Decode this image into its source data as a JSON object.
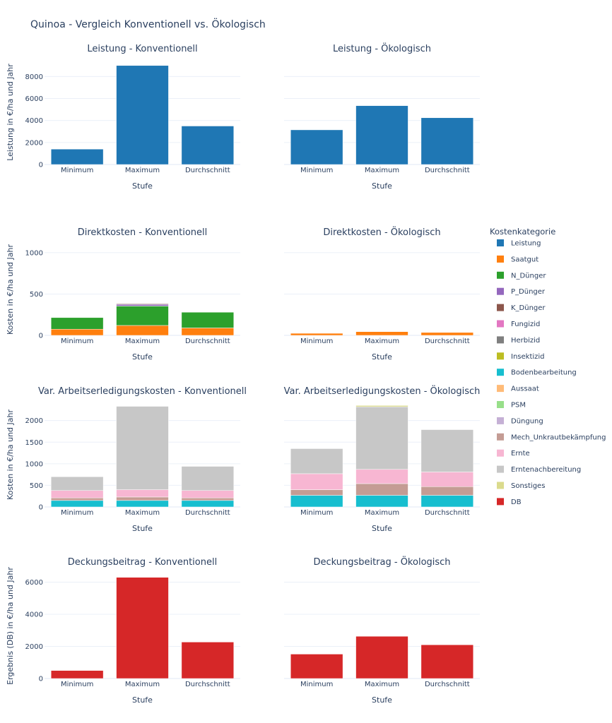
{
  "figure_title": "Quinoa - Vergleich Konventionell vs. Ökologisch",
  "legend": {
    "title": "Kostenkategorie",
    "items": [
      {
        "name": "Leistung",
        "color": "#1f77b4"
      },
      {
        "name": "Saatgut",
        "color": "#ff7f0e"
      },
      {
        "name": "N_Dünger",
        "color": "#2ca02c"
      },
      {
        "name": "P_Dünger",
        "color": "#9467bd"
      },
      {
        "name": "K_Dünger",
        "color": "#8c564b"
      },
      {
        "name": "Fungizid",
        "color": "#e377c2"
      },
      {
        "name": "Herbizid",
        "color": "#7f7f7f"
      },
      {
        "name": "Insektizid",
        "color": "#bcbd22"
      },
      {
        "name": "Bodenbearbeitung",
        "color": "#17becf"
      },
      {
        "name": "Aussaat",
        "color": "#ffbb78"
      },
      {
        "name": "PSM",
        "color": "#98df8a"
      },
      {
        "name": "Düngung",
        "color": "#c5b0d5"
      },
      {
        "name": "Mech_Unkrautbekämpfung",
        "color": "#c49c94"
      },
      {
        "name": "Ernte",
        "color": "#f7b6d2"
      },
      {
        "name": "Erntenachbereitung",
        "color": "#c7c7c7"
      },
      {
        "name": "Sonstiges",
        "color": "#dbdb8d"
      },
      {
        "name": "DB",
        "color": "#d62728"
      }
    ]
  },
  "chart_data": [
    {
      "type": "bar",
      "title": "Leistung - Konventionell",
      "xlabel": "Stufe",
      "ylabel": "Leistung in €/ha und Jahr",
      "categories": [
        "Minimum",
        "Maximum",
        "Durchschnitt"
      ],
      "ylim": [
        0,
        9500
      ],
      "yticks": [
        0,
        2000,
        4000,
        6000,
        8000
      ],
      "show_yticks": true,
      "series": [
        {
          "name": "Leistung",
          "values": [
            1400,
            9000,
            3500
          ]
        }
      ]
    },
    {
      "type": "bar",
      "title": "Leistung - Ökologisch",
      "xlabel": "Stufe",
      "ylabel": "",
      "categories": [
        "Minimum",
        "Maximum",
        "Durchschnitt"
      ],
      "ylim": [
        0,
        9500
      ],
      "yticks": [
        0,
        2000,
        4000,
        6000,
        8000
      ],
      "show_yticks": false,
      "series": [
        {
          "name": "Leistung",
          "values": [
            3150,
            5350,
            4250
          ]
        }
      ]
    },
    {
      "type": "bar",
      "stacked": true,
      "title": "Direktkosten - Konventionell",
      "xlabel": "Stufe",
      "ylabel": "Kosten in €/ha und Jahr",
      "categories": [
        "Minimum",
        "Maximum",
        "Durchschnitt"
      ],
      "ylim": [
        0,
        1110
      ],
      "yticks": [
        0,
        500,
        1000
      ],
      "show_yticks": true,
      "series": [
        {
          "name": "Saatgut",
          "values": [
            75,
            120,
            90
          ]
        },
        {
          "name": "N_Dünger",
          "values": [
            140,
            235,
            190
          ]
        },
        {
          "name": "P_Dünger",
          "values": [
            0,
            20,
            0
          ]
        },
        {
          "name": "K_Dünger",
          "values": [
            0,
            8,
            0
          ]
        }
      ]
    },
    {
      "type": "bar",
      "stacked": true,
      "title": "Direktkosten - Ökologisch",
      "xlabel": "Stufe",
      "ylabel": "",
      "categories": [
        "Minimum",
        "Maximum",
        "Durchschnitt"
      ],
      "ylim": [
        0,
        1110
      ],
      "yticks": [
        0,
        500,
        1000
      ],
      "show_yticks": false,
      "series": [
        {
          "name": "Saatgut",
          "values": [
            25,
            45,
            35
          ]
        }
      ]
    },
    {
      "type": "bar",
      "stacked": true,
      "title": "Var. Arbeitserledigungskosten - Konventionell",
      "xlabel": "Stufe",
      "ylabel": "Kosten in €/ha und Jahr",
      "categories": [
        "Minimum",
        "Maximum",
        "Durchschnitt"
      ],
      "ylim": [
        0,
        2420
      ],
      "yticks": [
        0,
        500,
        1000,
        1500,
        2000
      ],
      "show_yticks": true,
      "series": [
        {
          "name": "Bodenbearbeitung",
          "values": [
            150,
            150,
            150
          ]
        },
        {
          "name": "Mech_Unkrautbekämpfung",
          "values": [
            60,
            80,
            60
          ]
        },
        {
          "name": "Ernte",
          "values": [
            170,
            170,
            170
          ]
        },
        {
          "name": "Erntenachbereitung",
          "values": [
            320,
            1930,
            560
          ]
        }
      ]
    },
    {
      "type": "bar",
      "stacked": true,
      "title": "Var. Arbeitserledigungskosten - Ökologisch",
      "xlabel": "Stufe",
      "ylabel": "",
      "categories": [
        "Minimum",
        "Maximum",
        "Durchschnitt"
      ],
      "ylim": [
        0,
        2420
      ],
      "yticks": [
        0,
        500,
        1000,
        1500,
        2000
      ],
      "show_yticks": false,
      "series": [
        {
          "name": "Bodenbearbeitung",
          "values": [
            270,
            270,
            270
          ]
        },
        {
          "name": "Mech_Unkrautbekämpfung",
          "values": [
            130,
            270,
            200
          ]
        },
        {
          "name": "Ernte",
          "values": [
            370,
            330,
            340
          ]
        },
        {
          "name": "Erntenachbereitung",
          "values": [
            580,
            1450,
            980
          ]
        },
        {
          "name": "Sonstiges",
          "values": [
            0,
            30,
            0
          ]
        }
      ]
    },
    {
      "type": "bar",
      "title": "Deckungsbeitrag - Konventionell",
      "xlabel": "Stufe",
      "ylabel": "Ergebnis (DB) in €/ha und Jahr",
      "categories": [
        "Minimum",
        "Maximum",
        "Durchschnitt"
      ],
      "ylim": [
        0,
        6550
      ],
      "yticks": [
        0,
        2000,
        4000,
        6000
      ],
      "show_yticks": true,
      "series": [
        {
          "name": "DB",
          "values": [
            500,
            6300,
            2270
          ]
        }
      ]
    },
    {
      "type": "bar",
      "title": "Deckungsbeitrag - Ökologisch",
      "xlabel": "Stufe",
      "ylabel": "",
      "categories": [
        "Minimum",
        "Maximum",
        "Durchschnitt"
      ],
      "ylim": [
        0,
        6550
      ],
      "yticks": [
        0,
        2000,
        4000,
        6000
      ],
      "show_yticks": false,
      "series": [
        {
          "name": "DB",
          "values": [
            1520,
            2630,
            2100
          ]
        }
      ]
    }
  ]
}
